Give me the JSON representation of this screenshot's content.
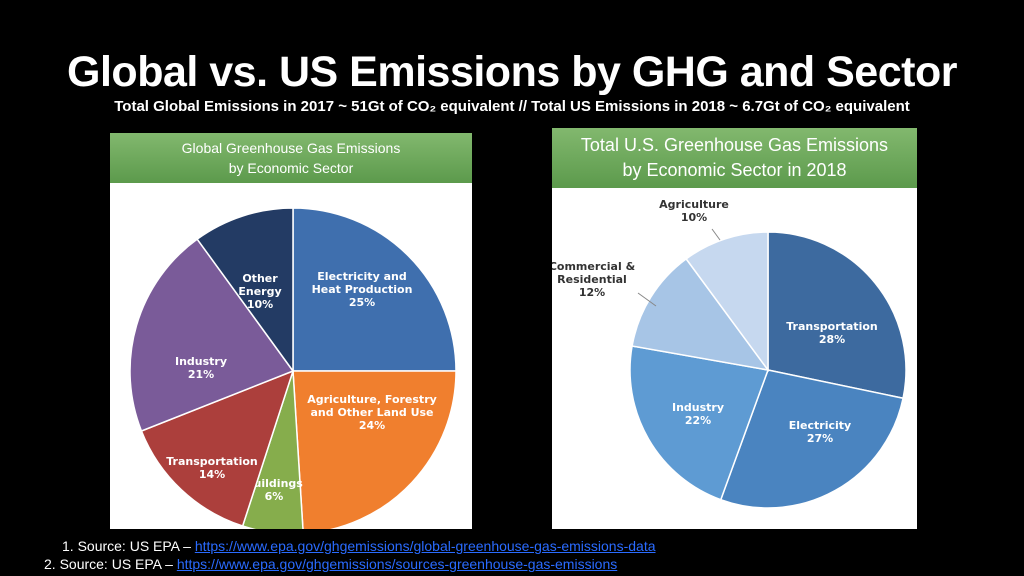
{
  "slide": {
    "title": "Global vs. US Emissions by GHG and Sector",
    "subtitle": "Total Global Emissions in 2017 ~ 51Gt of CO₂ equivalent // Total US Emissions in 2018 ~ 6.7Gt of CO₂ equivalent"
  },
  "chart_data": [
    {
      "type": "pie",
      "title_lines": [
        "Global Greenhouse Gas Emissions",
        "by Economic Sector"
      ],
      "slices": [
        {
          "label_lines": [
            "Electricity and",
            "Heat Production"
          ],
          "value": 25,
          "value_label": "25%",
          "color": "#3f6fae",
          "label_color": "#ffffff"
        },
        {
          "label_lines": [
            "Agriculture, Forestry",
            "and Other Land Use"
          ],
          "value": 24,
          "value_label": "24%",
          "color": "#f07f2e",
          "label_color": "#ffffff"
        },
        {
          "label_lines": [
            "Buildings"
          ],
          "value": 6,
          "value_label": "6%",
          "color": "#86ad4c",
          "label_color": "#ffffff"
        },
        {
          "label_lines": [
            "Transportation"
          ],
          "value": 14,
          "value_label": "14%",
          "color": "#ac3f3c",
          "label_color": "#ffffff"
        },
        {
          "label_lines": [
            "Industry"
          ],
          "value": 21,
          "value_label": "21%",
          "color": "#7a5b99",
          "label_color": "#ffffff"
        },
        {
          "label_lines": [
            "Other",
            "Energy"
          ],
          "value": 10,
          "value_label": "10%",
          "color": "#233b64",
          "label_color": "#ffffff"
        }
      ]
    },
    {
      "type": "pie",
      "title_lines": [
        "Total U.S. Greenhouse Gas Emissions",
        "by Economic Sector in 2018"
      ],
      "slices": [
        {
          "label_lines": [
            "Transportation"
          ],
          "value": 28,
          "value_label": "28%",
          "color": "#3d6a9f",
          "label_color": "#ffffff"
        },
        {
          "label_lines": [
            "Electricity"
          ],
          "value": 27,
          "value_label": "27%",
          "color": "#4a84c0",
          "label_color": "#ffffff"
        },
        {
          "label_lines": [
            "Industry"
          ],
          "value": 22,
          "value_label": "22%",
          "color": "#5e9bd3",
          "label_color": "#ffffff"
        },
        {
          "label_lines": [
            "Commercial &",
            "Residential"
          ],
          "value": 12,
          "value_label": "12%",
          "color": "#a7c5e6",
          "label_color": "#333333"
        },
        {
          "label_lines": [
            "Agriculture"
          ],
          "value": 10,
          "value_label": "10%",
          "color": "#c6d8ef",
          "label_color": "#333333"
        }
      ]
    }
  ],
  "sources": [
    {
      "prefix": "1. Source: US EPA – ",
      "link": "https://www.epa.gov/ghgemissions/global-greenhouse-gas-emissions-data"
    },
    {
      "prefix": "2. Source: US EPA – ",
      "link": "https://www.epa.gov/ghgemissions/sources-greenhouse-gas-emissions"
    }
  ]
}
